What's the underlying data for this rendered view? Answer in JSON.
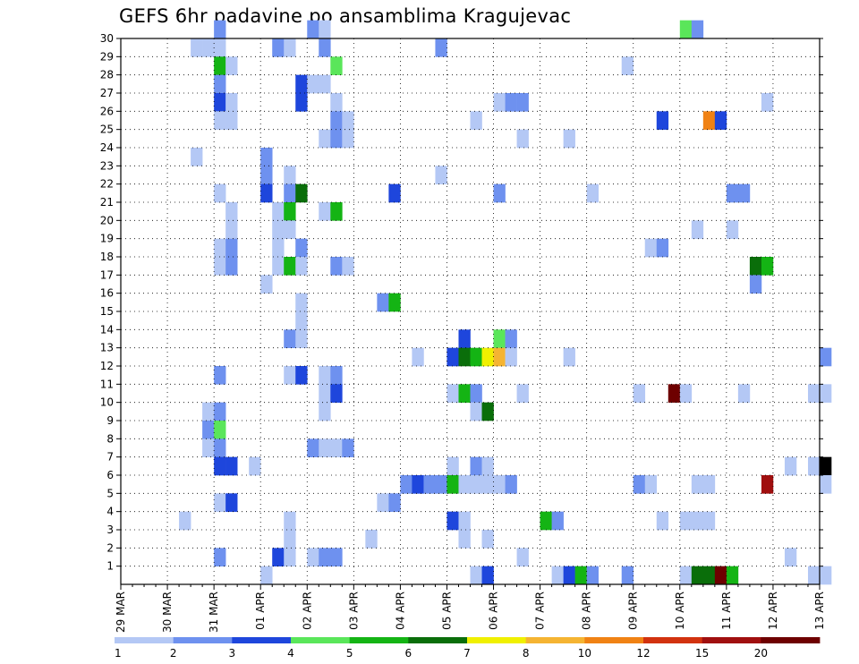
{
  "chart_data": {
    "type": "heatmap",
    "title": "GEFS 6hr padavine po ansamblima Kragujevac",
    "xlabel": "",
    "ylabel": "",
    "x_tick_labels": [
      "29 MAR",
      "30 MAR",
      "31 MAR",
      "01 APR",
      "02 APR",
      "03 APR",
      "04 APR",
      "05 APR",
      "06 APR",
      "07 APR",
      "08 APR",
      "09 APR",
      "10 APR",
      "11 APR",
      "12 APR",
      "13 APR"
    ],
    "y_tick_labels": [
      "1",
      "2",
      "3",
      "4",
      "5",
      "6",
      "7",
      "8",
      "9",
      "10",
      "11",
      "12",
      "13",
      "14",
      "15",
      "16",
      "17",
      "18",
      "19",
      "20",
      "21",
      "22",
      "23",
      "24",
      "25",
      "26",
      "27",
      "28",
      "29",
      "30"
    ],
    "time_step_hours": 6,
    "members_range": [
      0,
      30
    ],
    "legend_levels": [
      "1",
      "2",
      "3",
      "4",
      "5",
      "6",
      "7",
      "8",
      "10",
      "12",
      "15",
      "20"
    ],
    "colors": [
      "#b4c8f5",
      "#6e91ef",
      "#1e46dc",
      "#5ae65a",
      "#14b414",
      "#0a6e0a",
      "#f0f000",
      "#f5b432",
      "#f08214",
      "#d2320f",
      "#a00f0f",
      "#6e0000"
    ],
    "cells": [
      [
        30,
        8,
        2
      ],
      [
        30,
        16,
        2
      ],
      [
        30,
        17,
        1
      ],
      [
        30,
        48,
        4
      ],
      [
        30,
        49,
        2
      ],
      [
        29,
        6,
        1
      ],
      [
        29,
        7,
        1
      ],
      [
        29,
        8,
        1
      ],
      [
        29,
        13,
        2
      ],
      [
        29,
        14,
        1
      ],
      [
        29,
        17,
        2
      ],
      [
        29,
        27,
        2
      ],
      [
        28,
        8,
        5
      ],
      [
        28,
        9,
        1
      ],
      [
        28,
        18,
        4
      ],
      [
        28,
        43,
        1
      ],
      [
        27,
        8,
        2
      ],
      [
        27,
        15,
        3
      ],
      [
        27,
        16,
        1
      ],
      [
        27,
        17,
        1
      ],
      [
        26,
        8,
        3
      ],
      [
        26,
        9,
        1
      ],
      [
        26,
        15,
        3
      ],
      [
        26,
        18,
        1
      ],
      [
        26,
        32,
        1
      ],
      [
        26,
        33,
        2
      ],
      [
        26,
        34,
        2
      ],
      [
        26,
        55,
        1
      ],
      [
        25,
        8,
        1
      ],
      [
        25,
        9,
        1
      ],
      [
        25,
        18,
        2
      ],
      [
        25,
        19,
        1
      ],
      [
        25,
        30,
        1
      ],
      [
        25,
        46,
        3
      ],
      [
        25,
        50,
        9
      ],
      [
        25,
        51,
        3
      ],
      [
        24,
        17,
        1
      ],
      [
        24,
        18,
        2
      ],
      [
        24,
        19,
        1
      ],
      [
        24,
        34,
        1
      ],
      [
        24,
        38,
        1
      ],
      [
        23,
        6,
        1
      ],
      [
        23,
        12,
        2
      ],
      [
        22,
        12,
        2
      ],
      [
        22,
        14,
        1
      ],
      [
        22,
        27,
        1
      ],
      [
        21,
        8,
        1
      ],
      [
        21,
        12,
        3
      ],
      [
        21,
        14,
        2
      ],
      [
        21,
        15,
        6
      ],
      [
        21,
        23,
        3
      ],
      [
        21,
        32,
        2
      ],
      [
        21,
        40,
        1
      ],
      [
        21,
        52,
        2
      ],
      [
        21,
        53,
        2
      ],
      [
        20,
        9,
        1
      ],
      [
        20,
        13,
        1
      ],
      [
        20,
        14,
        5
      ],
      [
        20,
        17,
        1
      ],
      [
        20,
        18,
        5
      ],
      [
        19,
        9,
        1
      ],
      [
        19,
        13,
        1
      ],
      [
        19,
        14,
        1
      ],
      [
        19,
        49,
        1
      ],
      [
        19,
        52,
        1
      ],
      [
        18,
        8,
        1
      ],
      [
        18,
        9,
        2
      ],
      [
        18,
        13,
        1
      ],
      [
        18,
        15,
        2
      ],
      [
        18,
        45,
        1
      ],
      [
        18,
        46,
        2
      ],
      [
        17,
        8,
        1
      ],
      [
        17,
        9,
        2
      ],
      [
        17,
        13,
        1
      ],
      [
        17,
        14,
        5
      ],
      [
        17,
        15,
        1
      ],
      [
        17,
        18,
        2
      ],
      [
        17,
        19,
        1
      ],
      [
        17,
        54,
        6
      ],
      [
        17,
        55,
        5
      ],
      [
        16,
        12,
        1
      ],
      [
        16,
        54,
        2
      ],
      [
        15,
        15,
        1
      ],
      [
        15,
        22,
        2
      ],
      [
        15,
        23,
        5
      ],
      [
        14,
        15,
        1
      ],
      [
        13,
        14,
        2
      ],
      [
        13,
        15,
        1
      ],
      [
        13,
        29,
        3
      ],
      [
        13,
        32,
        4
      ],
      [
        13,
        33,
        2
      ],
      [
        12,
        25,
        1
      ],
      [
        12,
        28,
        3
      ],
      [
        12,
        29,
        6
      ],
      [
        12,
        30,
        5
      ],
      [
        12,
        31,
        7
      ],
      [
        12,
        32,
        8
      ],
      [
        12,
        33,
        1
      ],
      [
        12,
        38,
        1
      ],
      [
        12,
        60,
        2
      ],
      [
        11,
        8,
        2
      ],
      [
        11,
        14,
        1
      ],
      [
        11,
        15,
        3
      ],
      [
        11,
        17,
        1
      ],
      [
        11,
        18,
        2
      ],
      [
        10,
        17,
        1
      ],
      [
        10,
        18,
        3
      ],
      [
        10,
        28,
        1
      ],
      [
        10,
        29,
        5
      ],
      [
        10,
        30,
        2
      ],
      [
        10,
        34,
        1
      ],
      [
        10,
        44,
        1
      ],
      [
        10,
        47,
        12
      ],
      [
        10,
        48,
        1
      ],
      [
        10,
        53,
        1
      ],
      [
        10,
        59,
        1
      ],
      [
        10,
        60,
        1
      ],
      [
        9,
        7,
        1
      ],
      [
        9,
        8,
        2
      ],
      [
        9,
        17,
        1
      ],
      [
        9,
        30,
        1
      ],
      [
        9,
        31,
        6
      ],
      [
        8,
        7,
        2
      ],
      [
        8,
        8,
        4
      ],
      [
        7,
        7,
        1
      ],
      [
        7,
        8,
        2
      ],
      [
        7,
        16,
        2
      ],
      [
        7,
        17,
        1
      ],
      [
        7,
        18,
        1
      ],
      [
        7,
        19,
        2
      ],
      [
        6,
        8,
        3
      ],
      [
        6,
        9,
        3
      ],
      [
        6,
        11,
        1
      ],
      [
        6,
        28,
        1
      ],
      [
        6,
        30,
        2
      ],
      [
        6,
        31,
        1
      ],
      [
        6,
        57,
        1
      ],
      [
        6,
        59,
        1
      ],
      [
        6,
        60,
        13
      ],
      [
        5,
        24,
        2
      ],
      [
        5,
        25,
        3
      ],
      [
        5,
        26,
        2
      ],
      [
        5,
        27,
        2
      ],
      [
        5,
        28,
        5
      ],
      [
        5,
        29,
        1
      ],
      [
        5,
        30,
        1
      ],
      [
        5,
        31,
        1
      ],
      [
        5,
        32,
        1
      ],
      [
        5,
        33,
        2
      ],
      [
        5,
        44,
        2
      ],
      [
        5,
        45,
        1
      ],
      [
        5,
        49,
        1
      ],
      [
        5,
        50,
        1
      ],
      [
        5,
        55,
        11
      ],
      [
        5,
        60,
        1
      ],
      [
        4,
        8,
        1
      ],
      [
        4,
        9,
        3
      ],
      [
        4,
        22,
        1
      ],
      [
        4,
        23,
        2
      ],
      [
        3,
        5,
        1
      ],
      [
        3,
        14,
        1
      ],
      [
        3,
        28,
        3
      ],
      [
        3,
        29,
        1
      ],
      [
        3,
        36,
        5
      ],
      [
        3,
        37,
        2
      ],
      [
        3,
        46,
        1
      ],
      [
        3,
        48,
        1
      ],
      [
        3,
        49,
        1
      ],
      [
        3,
        50,
        1
      ],
      [
        2,
        14,
        1
      ],
      [
        2,
        21,
        1
      ],
      [
        2,
        29,
        1
      ],
      [
        2,
        31,
        1
      ],
      [
        1,
        8,
        2
      ],
      [
        1,
        13,
        3
      ],
      [
        1,
        14,
        1
      ],
      [
        1,
        16,
        1
      ],
      [
        1,
        17,
        2
      ],
      [
        1,
        18,
        2
      ],
      [
        1,
        34,
        1
      ],
      [
        1,
        57,
        1
      ],
      [
        0,
        12,
        1
      ],
      [
        0,
        30,
        1
      ],
      [
        0,
        31,
        3
      ],
      [
        0,
        37,
        1
      ],
      [
        0,
        38,
        3
      ],
      [
        0,
        39,
        5
      ],
      [
        0,
        40,
        2
      ],
      [
        0,
        43,
        2
      ],
      [
        0,
        48,
        1
      ],
      [
        0,
        49,
        6
      ],
      [
        0,
        50,
        6
      ],
      [
        0,
        51,
        12
      ],
      [
        0,
        52,
        5
      ],
      [
        0,
        59,
        1
      ],
      [
        0,
        60,
        1
      ]
    ]
  }
}
